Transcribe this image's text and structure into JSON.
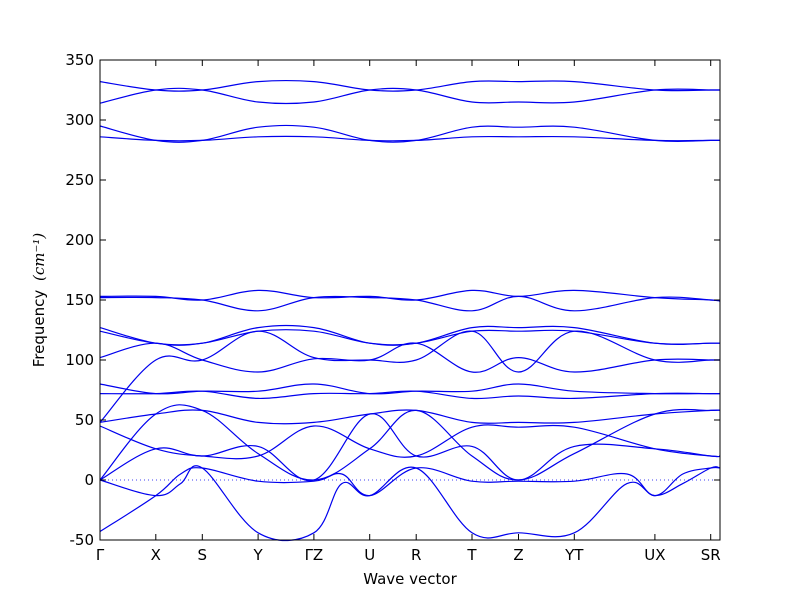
{
  "chart_data": {
    "type": "line",
    "title": "",
    "xlabel": "Wave vector",
    "ylabel": "Frequency",
    "ylabel_unit": "(cm⁻¹)",
    "ylim": [
      -50,
      350
    ],
    "yticks": [
      -50,
      0,
      50,
      100,
      150,
      200,
      250,
      300,
      350
    ],
    "grid": false,
    "legend": "none",
    "line_color": "#0000ee",
    "kpoints": [
      {
        "label": "Γ",
        "x": 0.0
      },
      {
        "label": "X",
        "x": 0.09
      },
      {
        "label": "S",
        "x": 0.165
      },
      {
        "label": "Y",
        "x": 0.255
      },
      {
        "label": "ΓZ",
        "x": 0.345
      },
      {
        "label": "U",
        "x": 0.435
      },
      {
        "label": "R",
        "x": 0.51
      },
      {
        "label": "T",
        "x": 0.6
      },
      {
        "label": "Z",
        "x": 0.675
      },
      {
        "label": "YT",
        "x": 0.765
      },
      {
        "label": "UX",
        "x": 0.895
      },
      {
        "label": "SR",
        "x": 0.985
      }
    ],
    "series": [
      {
        "x": [
          0,
          0.09,
          0.165,
          0.255,
          0.345,
          0.435,
          0.51,
          0.6,
          0.675,
          0.765,
          0.895,
          0.985,
          1.0
        ],
        "y": [
          332,
          325,
          325,
          332,
          332,
          325,
          325,
          332,
          332,
          332,
          325,
          325,
          325
        ]
      },
      {
        "x": [
          0,
          0.09,
          0.165,
          0.255,
          0.345,
          0.435,
          0.51,
          0.6,
          0.675,
          0.765,
          0.895,
          0.985,
          1.0
        ],
        "y": [
          314,
          325,
          325,
          315,
          315,
          325,
          325,
          315,
          315,
          315,
          325,
          325,
          325
        ]
      },
      {
        "x": [
          0,
          0.09,
          0.165,
          0.255,
          0.345,
          0.435,
          0.51,
          0.6,
          0.675,
          0.765,
          0.895,
          0.985,
          1.0
        ],
        "y": [
          295,
          283,
          283,
          294,
          294,
          283,
          283,
          294,
          294,
          294,
          283,
          283,
          283
        ]
      },
      {
        "x": [
          0,
          0.09,
          0.165,
          0.255,
          0.345,
          0.435,
          0.51,
          0.6,
          0.675,
          0.765,
          0.895,
          0.985,
          1.0
        ],
        "y": [
          286,
          283,
          283,
          286,
          286,
          283,
          283,
          286,
          286,
          286,
          283,
          283,
          283
        ]
      },
      {
        "x": [
          0,
          0.09,
          0.165,
          0.255,
          0.345,
          0.435,
          0.51,
          0.6,
          0.675,
          0.765,
          0.895,
          0.985,
          1.0
        ],
        "y": [
          153,
          153,
          150,
          158,
          152,
          153,
          150,
          158,
          153,
          158,
          152,
          150,
          149
        ]
      },
      {
        "x": [
          0,
          0.09,
          0.165,
          0.255,
          0.345,
          0.435,
          0.51,
          0.6,
          0.675,
          0.765,
          0.895,
          0.985,
          1.0
        ],
        "y": [
          152,
          152,
          150,
          141,
          152,
          152,
          150,
          141,
          153,
          141,
          152,
          150,
          149
        ]
      },
      {
        "x": [
          0,
          0.09,
          0.165,
          0.255,
          0.345,
          0.435,
          0.51,
          0.6,
          0.675,
          0.765,
          0.895,
          0.985,
          1.0
        ],
        "y": [
          127,
          114,
          114,
          127,
          127,
          114,
          114,
          127,
          127,
          127,
          114,
          114,
          114
        ]
      },
      {
        "x": [
          0,
          0.09,
          0.165,
          0.255,
          0.345,
          0.435,
          0.51,
          0.6,
          0.675,
          0.765,
          0.895,
          0.985,
          1.0
        ],
        "y": [
          124,
          114,
          114,
          124,
          124,
          114,
          114,
          124,
          124,
          124,
          114,
          114,
          114
        ]
      },
      {
        "x": [
          0,
          0.09,
          0.165,
          0.255,
          0.345,
          0.435,
          0.51,
          0.6,
          0.675,
          0.765,
          0.895,
          0.985,
          1.0
        ],
        "y": [
          102,
          114,
          100,
          90,
          101,
          100,
          114,
          90,
          102,
          90,
          100,
          100,
          100
        ]
      },
      {
        "x": [
          0,
          0.09,
          0.165,
          0.255,
          0.345,
          0.435,
          0.51,
          0.6,
          0.675,
          0.765,
          0.895,
          0.985,
          1.0
        ],
        "y": [
          48,
          100,
          100,
          124,
          102,
          100,
          100,
          124,
          90,
          124,
          100,
          100,
          100
        ]
      },
      {
        "x": [
          0,
          0.09,
          0.165,
          0.255,
          0.345,
          0.435,
          0.51,
          0.6,
          0.675,
          0.765,
          0.895,
          0.985,
          1.0
        ],
        "y": [
          80,
          72,
          74,
          74,
          80,
          72,
          74,
          74,
          80,
          74,
          72,
          72,
          72
        ]
      },
      {
        "x": [
          0,
          0.09,
          0.165,
          0.255,
          0.345,
          0.435,
          0.51,
          0.6,
          0.675,
          0.765,
          0.895,
          0.985,
          1.0
        ],
        "y": [
          72,
          72,
          74,
          68,
          72,
          72,
          74,
          68,
          70,
          68,
          72,
          72,
          72
        ]
      },
      {
        "x": [
          0,
          0.09,
          0.165,
          0.255,
          0.345,
          0.435,
          0.51,
          0.6,
          0.675,
          0.765,
          0.895,
          0.985,
          1.0
        ],
        "y": [
          48,
          55,
          58,
          48,
          48,
          55,
          58,
          48,
          48,
          48,
          55,
          58,
          58
        ]
      },
      {
        "x": [
          0,
          0.09,
          0.165,
          0.255,
          0.345,
          0.435,
          0.51,
          0.6,
          0.675,
          0.765,
          0.895,
          0.985,
          1.0
        ],
        "y": [
          45,
          26,
          20,
          20,
          45,
          26,
          20,
          44,
          44,
          44,
          26,
          20,
          20
        ]
      },
      {
        "x": [
          0,
          0.09,
          0.165,
          0.255,
          0.345,
          0.435,
          0.51,
          0.6,
          0.675,
          0.765,
          0.895,
          0.985,
          1.0
        ],
        "y": [
          0,
          26,
          20,
          28,
          0,
          55,
          20,
          28,
          0,
          28,
          26,
          20,
          20
        ]
      },
      {
        "x": [
          0,
          0.09,
          0.165,
          0.255,
          0.345,
          0.435,
          0.51,
          0.6,
          0.675,
          0.765,
          0.895,
          0.985,
          1.0
        ],
        "y": [
          0,
          55,
          58,
          22,
          0,
          26,
          58,
          20,
          0,
          22,
          55,
          58,
          58
        ]
      },
      {
        "x": [
          0,
          0.09,
          0.13,
          0.165,
          0.255,
          0.345,
          0.39,
          0.435,
          0.51,
          0.6,
          0.675,
          0.765,
          0.85,
          0.895,
          0.94,
          0.985,
          1.0
        ],
        "y": [
          0,
          -13,
          -3,
          10,
          -44,
          -44,
          -3,
          -13,
          10,
          -44,
          -44,
          -44,
          -3,
          -13,
          -3,
          10,
          10
        ]
      },
      {
        "x": [
          0,
          0.09,
          0.13,
          0.165,
          0.255,
          0.345,
          0.39,
          0.435,
          0.51,
          0.6,
          0.675,
          0.765,
          0.85,
          0.895,
          0.94,
          0.985,
          1.0
        ],
        "y": [
          -43,
          -13,
          5,
          10,
          -1,
          -1,
          5,
          -13,
          10,
          -1,
          -1,
          -1,
          5,
          -13,
          5,
          10,
          10
        ]
      }
    ]
  }
}
